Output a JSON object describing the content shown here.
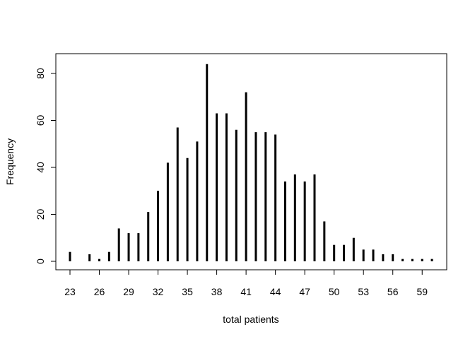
{
  "chart_data": {
    "type": "bar",
    "xlabel": "total patients",
    "ylabel": "Frequency",
    "xlim": [
      22,
      61
    ],
    "ylim": [
      0,
      85
    ],
    "grid": false,
    "x_ticks": [
      23,
      26,
      29,
      32,
      35,
      38,
      41,
      44,
      47,
      50,
      53,
      56,
      59
    ],
    "y_ticks": [
      0,
      20,
      40,
      60,
      80
    ],
    "x": [
      23,
      25,
      26,
      27,
      28,
      29,
      30,
      31,
      32,
      33,
      34,
      35,
      36,
      37,
      38,
      39,
      40,
      41,
      42,
      43,
      44,
      45,
      46,
      47,
      48,
      49,
      50,
      51,
      52,
      53,
      54,
      55,
      56,
      57,
      58,
      59,
      60
    ],
    "values": [
      4,
      3,
      1,
      4,
      14,
      12,
      12,
      21,
      30,
      42,
      57,
      44,
      51,
      84,
      63,
      63,
      56,
      72,
      55,
      55,
      54,
      34,
      37,
      34,
      37,
      17,
      7,
      7,
      10,
      5,
      5,
      3,
      3,
      1,
      1,
      1,
      1
    ],
    "bar_color": "#000000"
  }
}
